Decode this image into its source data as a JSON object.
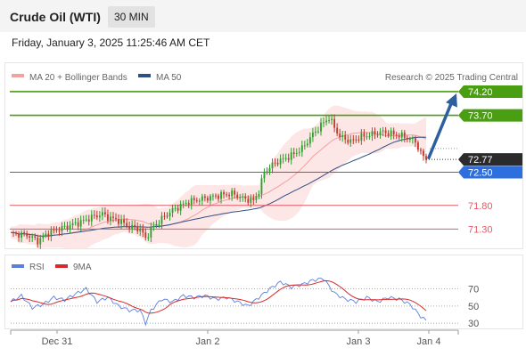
{
  "header": {
    "title": "Crude Oil (WTI)",
    "timeframe": "30 MIN"
  },
  "datetime": "Friday, January 3, 2025 11:25:46 AM CET",
  "legend": {
    "bollinger": "MA 20 + Bollinger Bands",
    "ma50": "MA 50",
    "source": "Research © 2025 Trading Central"
  },
  "rsi_legend": {
    "rsi": "RSI",
    "ma9": "9MA"
  },
  "colors": {
    "resistance": "#4a9e12",
    "support": "#2e6fe0",
    "minor_level": "#e05a66",
    "current_price": "#2b2b2b",
    "ma20": "#f3a0a0",
    "band_fill": "#fbe2e2",
    "ma50": "#2f4f86",
    "up_candle": "#2aa02a",
    "down_candle": "#c0392b",
    "arrow": "#2c5f9e",
    "rsi": "#5b7fe0",
    "rsi_ma": "#d62b2b"
  },
  "chart_data": {
    "type": "candlestick",
    "instrument": "Crude Oil (WTI)",
    "interval": "30 MIN",
    "x_ticks": [
      "Dec 31",
      "Jan 2",
      "Jan 3",
      "Jan 4"
    ],
    "ylim": [
      70.5,
      74.5
    ],
    "levels": [
      {
        "label": "74.20",
        "value": 74.2,
        "kind": "resistance"
      },
      {
        "label": "73.70",
        "value": 73.7,
        "kind": "resistance"
      },
      {
        "label": "72.77",
        "value": 72.77,
        "kind": "current"
      },
      {
        "label": "72.50",
        "value": 72.5,
        "kind": "support"
      },
      {
        "label": "71.80",
        "value": 71.8,
        "kind": "minor"
      },
      {
        "label": "71.30",
        "value": 71.3,
        "kind": "minor"
      }
    ],
    "projection": {
      "from": 72.77,
      "to": 74.2
    },
    "price_anchors": [
      [
        0,
        71.2
      ],
      [
        6,
        71.18
      ],
      [
        10,
        71.05
      ],
      [
        14,
        71.22
      ],
      [
        18,
        71.3
      ],
      [
        22,
        71.38
      ],
      [
        26,
        71.45
      ],
      [
        30,
        71.55
      ],
      [
        34,
        71.62
      ],
      [
        36,
        71.55
      ],
      [
        40,
        71.48
      ],
      [
        44,
        71.35
      ],
      [
        48,
        71.3
      ],
      [
        50,
        71.1
      ],
      [
        52,
        71.3
      ],
      [
        56,
        71.52
      ],
      [
        60,
        71.7
      ],
      [
        66,
        71.88
      ],
      [
        72,
        71.95
      ],
      [
        78,
        72.02
      ],
      [
        82,
        72.05
      ],
      [
        86,
        71.95
      ],
      [
        90,
        71.9
      ],
      [
        92,
        72.1
      ],
      [
        94,
        72.5
      ],
      [
        98,
        72.7
      ],
      [
        104,
        72.85
      ],
      [
        108,
        73.0
      ],
      [
        112,
        73.3
      ],
      [
        116,
        73.55
      ],
      [
        118,
        73.65
      ],
      [
        120,
        73.45
      ],
      [
        122,
        73.25
      ],
      [
        126,
        73.15
      ],
      [
        130,
        73.25
      ],
      [
        134,
        73.3
      ],
      [
        138,
        73.35
      ],
      [
        142,
        73.3
      ],
      [
        146,
        73.25
      ],
      [
        150,
        73.15
      ],
      [
        152,
        72.9
      ],
      [
        154,
        72.77
      ]
    ],
    "rsi": {
      "ticks": [
        70,
        50,
        30
      ],
      "ylim": [
        25,
        85
      ],
      "values": [
        [
          0,
          55
        ],
        [
          4,
          62
        ],
        [
          8,
          48
        ],
        [
          12,
          52
        ],
        [
          16,
          60
        ],
        [
          20,
          57
        ],
        [
          24,
          64
        ],
        [
          28,
          70
        ],
        [
          32,
          55
        ],
        [
          36,
          60
        ],
        [
          40,
          50
        ],
        [
          44,
          45
        ],
        [
          48,
          45
        ],
        [
          50,
          30
        ],
        [
          52,
          45
        ],
        [
          56,
          58
        ],
        [
          60,
          55
        ],
        [
          64,
          62
        ],
        [
          68,
          60
        ],
        [
          72,
          62
        ],
        [
          76,
          58
        ],
        [
          80,
          60
        ],
        [
          84,
          55
        ],
        [
          88,
          50
        ],
        [
          92,
          60
        ],
        [
          96,
          70
        ],
        [
          100,
          78
        ],
        [
          104,
          72
        ],
        [
          108,
          75
        ],
        [
          112,
          80
        ],
        [
          116,
          82
        ],
        [
          118,
          73
        ],
        [
          120,
          65
        ],
        [
          124,
          58
        ],
        [
          128,
          55
        ],
        [
          132,
          60
        ],
        [
          136,
          55
        ],
        [
          140,
          60
        ],
        [
          144,
          58
        ],
        [
          148,
          52
        ],
        [
          152,
          38
        ],
        [
          154,
          33
        ]
      ]
    }
  }
}
